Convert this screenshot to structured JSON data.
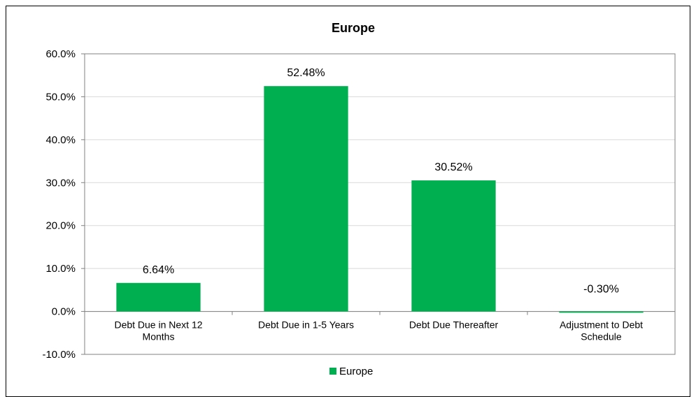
{
  "chart_data": {
    "type": "bar",
    "title": "Europe",
    "xlabel": "",
    "ylabel": "",
    "categories": [
      [
        "Debt Due in Next 12",
        "Months"
      ],
      [
        "Debt Due in 1-5 Years"
      ],
      [
        "Debt Due Thereafter"
      ],
      [
        "Adjustment to Debt",
        "Schedule"
      ]
    ],
    "series": [
      {
        "name": "Europe",
        "values": [
          6.64,
          52.48,
          30.52,
          -0.3
        ],
        "data_labels": [
          "6.64%",
          "52.48%",
          "30.52%",
          "-0.30%"
        ],
        "color": "#00B050"
      }
    ],
    "ylim": [
      -10,
      60
    ],
    "yticks": [
      60,
      50,
      40,
      30,
      20,
      10,
      0,
      -10
    ],
    "ytick_labels": [
      "60.0%",
      "50.0%",
      "40.0%",
      "30.0%",
      "20.0%",
      "10.0%",
      "0.0%",
      "-10.0%"
    ],
    "grid": true,
    "legend_position": "bottom",
    "colors": {
      "bar": "#00B050",
      "grid": "#D9D9D9",
      "axis": "#808080"
    }
  }
}
